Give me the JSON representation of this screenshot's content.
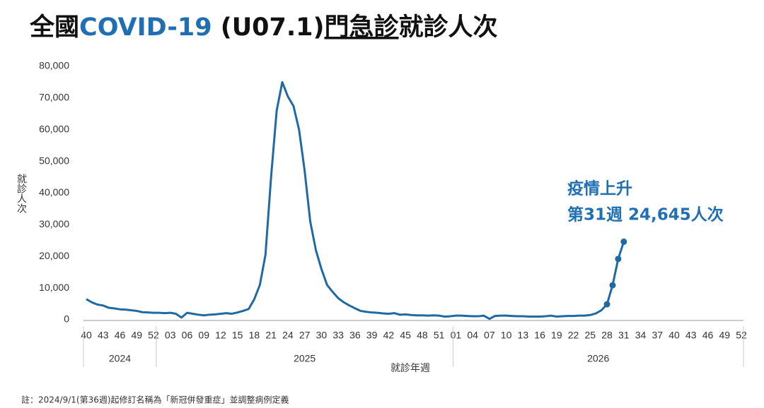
{
  "chart_data": {
    "type": "line",
    "title_parts": [
      "全國",
      "COVID-19",
      " (U07.1)",
      "門急診",
      "就診人次"
    ],
    "title_colors": [
      "#111111",
      "#1f6fb2",
      "#111111",
      "#111111",
      "#111111"
    ],
    "title_underline": [
      false,
      false,
      false,
      true,
      false
    ],
    "y_label": "就診人次",
    "x_label": "就診年週",
    "annotation": [
      "疫情上升",
      "第31週 24,645人次"
    ],
    "annotation_color": "#1f6fb2",
    "footnote": "註：2024/9/1(第36週)起修訂名稱為「新冠併發重症」並調整病例定義",
    "years": [
      {
        "name": "2024",
        "weeks": 13
      },
      {
        "name": "2025",
        "weeks": 53
      },
      {
        "name": "2026",
        "weeks": 52
      }
    ],
    "categories": [
      "40",
      null,
      null,
      "43",
      null,
      null,
      "46",
      null,
      null,
      "49",
      null,
      null,
      "52",
      null,
      null,
      "03",
      null,
      null,
      "06",
      null,
      null,
      "09",
      null,
      null,
      "12",
      null,
      null,
      "15",
      null,
      null,
      "18",
      null,
      null,
      "21",
      null,
      null,
      "24",
      null,
      null,
      "27",
      null,
      null,
      "30",
      null,
      null,
      "33",
      null,
      null,
      "36",
      null,
      null,
      "39",
      null,
      null,
      "42",
      null,
      null,
      "45",
      null,
      null,
      "48",
      null,
      null,
      "51",
      null,
      null,
      "01",
      null,
      null,
      "04",
      null,
      null,
      "07",
      null,
      null,
      "10",
      null,
      null,
      "13",
      null,
      null,
      "16",
      null,
      null,
      "19",
      null,
      null,
      "22",
      null,
      null,
      "25",
      null,
      null,
      "28",
      null,
      null,
      "31",
      null,
      null,
      "34",
      null,
      null,
      "37",
      null,
      null,
      "40",
      null,
      null,
      "43",
      null,
      null,
      "46",
      null,
      null,
      "49",
      null,
      null,
      "52"
    ],
    "values": [
      6500,
      5500,
      4800,
      4500,
      3800,
      3600,
      3300,
      3200,
      3000,
      2800,
      2400,
      2300,
      2200,
      2200,
      2100,
      2200,
      1900,
      700,
      2200,
      1900,
      1600,
      1400,
      1600,
      1700,
      1900,
      2100,
      1900,
      2300,
      2800,
      3400,
      6500,
      11000,
      20500,
      45000,
      66000,
      75000,
      70500,
      67500,
      60000,
      47000,
      31000,
      22000,
      16000,
      11000,
      8800,
      6800,
      5500,
      4500,
      3600,
      2800,
      2500,
      2300,
      2200,
      2000,
      1900,
      2100,
      1600,
      1700,
      1500,
      1400,
      1400,
      1300,
      1400,
      1300,
      1000,
      1100,
      1300,
      1300,
      1200,
      1100,
      1100,
      1300,
      300,
      1200,
      1300,
      1300,
      1200,
      1100,
      1100,
      1000,
      1000,
      1000,
      1100,
      1300,
      1000,
      1100,
      1200,
      1200,
      1300,
      1300,
      1500,
      2000,
      3000,
      4900,
      10900,
      19200,
      24645,
      null,
      null,
      null,
      null,
      null,
      null,
      null,
      null,
      null,
      null,
      null,
      null,
      null,
      null,
      null,
      null,
      null,
      null,
      null,
      null,
      null
    ],
    "marker_points": [
      93,
      94,
      95,
      96
    ],
    "color": "#1f6aa5",
    "ylim": [
      0,
      80000
    ],
    "yticks": [
      0,
      {
        "value": 10000,
        "label": "10,000"
      },
      {
        "value": 20000,
        "label": "20,000"
      },
      {
        "value": 30000,
        "label": "30,000"
      },
      {
        "value": 40000,
        "label": "40,000"
      },
      {
        "value": 50000,
        "label": "50,000"
      },
      {
        "value": 60000,
        "label": "60,000"
      },
      {
        "value": 70000,
        "label": "70,000"
      },
      {
        "value": 80000,
        "label": "80,000"
      }
    ],
    "grid": false
  }
}
